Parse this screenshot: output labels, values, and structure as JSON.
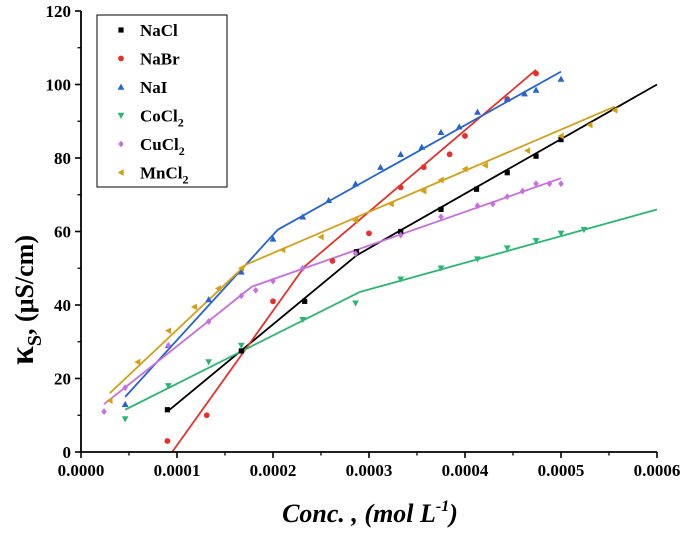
{
  "chart_data": {
    "type": "scatter",
    "title": "",
    "xlabel": "Conc. , (mol L-1)",
    "ylabel": "κS, (μS/cm)",
    "xlim": [
      0.0,
      0.0006
    ],
    "ylim": [
      0,
      120
    ],
    "xticks": [
      "0.0000",
      "0.0001",
      "0.0002",
      "0.0003",
      "0.0004",
      "0.0005",
      "0.0006"
    ],
    "yticks": [
      "0",
      "20",
      "40",
      "60",
      "80",
      "100",
      "120"
    ],
    "grid": false,
    "legend_position": "top-left",
    "series": [
      {
        "name": "NaCl",
        "color": "#000000",
        "marker": "square",
        "points": [
          [
            9e-05,
            11.5
          ],
          [
            0.000167,
            27.5
          ],
          [
            0.000233,
            41
          ],
          [
            0.000287,
            54.5
          ],
          [
            0.000333,
            60
          ],
          [
            0.000375,
            66
          ],
          [
            0.000412,
            71.5
          ],
          [
            0.000444,
            76
          ],
          [
            0.000474,
            80.5
          ],
          [
            0.0005,
            85
          ]
        ],
        "fit": [
          [
            [
              9e-05,
              11
            ],
            [
              0.000287,
              53.5
            ]
          ],
          [
            [
              0.000287,
              53.5
            ],
            [
              0.0006,
              100
            ]
          ]
        ]
      },
      {
        "name": "NaBr",
        "color": "#e8302a",
        "marker": "circle",
        "points": [
          [
            9e-05,
            3
          ],
          [
            0.000131,
            10
          ],
          [
            0.0002,
            41
          ],
          [
            0.000262,
            52
          ],
          [
            0.0003,
            59.5
          ],
          [
            0.000333,
            72
          ],
          [
            0.000357,
            77.5
          ],
          [
            0.000384,
            81
          ],
          [
            0.0004,
            86
          ],
          [
            0.000444,
            96
          ],
          [
            0.000474,
            103
          ]
        ],
        "fit": [
          [
            [
              9.5e-05,
              0
            ],
            [
              0.000233,
              50.5
            ]
          ],
          [
            [
              0.000233,
              50.5
            ],
            [
              0.000474,
              104
            ]
          ]
        ]
      },
      {
        "name": "NaI",
        "color": "#2563d6",
        "marker": "triangle-up",
        "points": [
          [
            4.6e-05,
            13
          ],
          [
            9.1e-05,
            29
          ],
          [
            0.000133,
            41.5
          ],
          [
            0.000167,
            49
          ],
          [
            0.0002,
            58
          ],
          [
            0.000231,
            64
          ],
          [
            0.000258,
            68.5
          ],
          [
            0.000286,
            73
          ],
          [
            0.000312,
            77.5
          ],
          [
            0.000333,
            81
          ],
          [
            0.000355,
            83
          ],
          [
            0.000375,
            87
          ],
          [
            0.000394,
            88.5
          ],
          [
            0.000413,
            92.5
          ],
          [
            0.000444,
            96
          ],
          [
            0.000462,
            97.5
          ],
          [
            0.000474,
            98.5
          ],
          [
            0.0005,
            101.5
          ]
        ],
        "fit": [
          [
            [
              4.6e-05,
              15
            ],
            [
              0.000205,
              60.5
            ]
          ],
          [
            [
              0.000205,
              60.5
            ],
            [
              0.0005,
              103.5
            ]
          ]
        ]
      },
      {
        "name": "CoCl2",
        "color": "#2bb673",
        "marker": "triangle-down",
        "points": [
          [
            4.6e-05,
            9
          ],
          [
            9.1e-05,
            18
          ],
          [
            0.000133,
            24.5
          ],
          [
            0.000167,
            29
          ],
          [
            0.000231,
            36
          ],
          [
            0.000286,
            40.5
          ],
          [
            0.000333,
            47
          ],
          [
            0.000375,
            50
          ],
          [
            0.000413,
            52.5
          ],
          [
            0.000444,
            55.5
          ],
          [
            0.000474,
            57.5
          ],
          [
            0.0005,
            59.5
          ],
          [
            0.000524,
            60.5
          ]
        ],
        "fit": [
          [
            [
              4.6e-05,
              11.5
            ],
            [
              0.00029,
              43.5
            ]
          ],
          [
            [
              0.00029,
              43.5
            ],
            [
              0.0006,
              66
            ]
          ]
        ]
      },
      {
        "name": "CuCl2",
        "color": "#c86ee0",
        "marker": "diamond",
        "points": [
          [
            2.4e-05,
            11
          ],
          [
            4.6e-05,
            17.5
          ],
          [
            9.1e-05,
            29
          ],
          [
            0.000133,
            35.5
          ],
          [
            0.000167,
            42.5
          ],
          [
            0.000182,
            44
          ],
          [
            0.0002,
            46.5
          ],
          [
            0.000231,
            50
          ],
          [
            0.000286,
            54
          ],
          [
            0.000333,
            59
          ],
          [
            0.000375,
            64
          ],
          [
            0.000413,
            67
          ],
          [
            0.000429,
            67.5
          ],
          [
            0.000444,
            69.5
          ],
          [
            0.00046,
            71
          ],
          [
            0.000474,
            73
          ],
          [
            0.000488,
            73
          ],
          [
            0.0005,
            73
          ]
        ],
        "fit": [
          [
            [
              2.4e-05,
              13
            ],
            [
              0.000178,
              45
            ]
          ],
          [
            [
              0.000178,
              45
            ],
            [
              0.0005,
              74.5
            ]
          ]
        ]
      },
      {
        "name": "MnCl2",
        "color": "#d4a017",
        "marker": "triangle-left",
        "points": [
          [
            3e-05,
            14
          ],
          [
            5.9e-05,
            24.5
          ],
          [
            9.1e-05,
            33
          ],
          [
            0.000118,
            39.5
          ],
          [
            0.000143,
            44.5
          ],
          [
            0.000167,
            50
          ],
          [
            0.00021,
            55
          ],
          [
            0.00025,
            58.5
          ],
          [
            0.000286,
            63
          ],
          [
            0.000323,
            67.5
          ],
          [
            0.000357,
            71
          ],
          [
            0.000375,
            74
          ],
          [
            0.0004,
            77
          ],
          [
            0.000421,
            78
          ],
          [
            0.000465,
            82
          ],
          [
            0.0005,
            86
          ],
          [
            0.00053,
            89
          ],
          [
            0.000556,
            93
          ]
        ],
        "fit": [
          [
            [
              3e-05,
              16
            ],
            [
              0.000172,
              51
            ]
          ],
          [
            [
              0.000172,
              51
            ],
            [
              0.000556,
              94
            ]
          ]
        ]
      }
    ]
  },
  "legend": {
    "items": [
      {
        "base": "NaCl",
        "sub": ""
      },
      {
        "base": "NaBr",
        "sub": ""
      },
      {
        "base": "NaI",
        "sub": ""
      },
      {
        "base": "CoCl",
        "sub": "2"
      },
      {
        "base": "CuCl",
        "sub": "2"
      },
      {
        "base": "MnCl",
        "sub": "2"
      }
    ]
  },
  "axes": {
    "y_title_symbol": "κ",
    "y_title_sub": "S",
    "y_title_rest": ", (μS/cm)",
    "x_title_main": "Conc. , (mol L",
    "x_title_sup": "-1",
    "x_title_end": ")"
  }
}
